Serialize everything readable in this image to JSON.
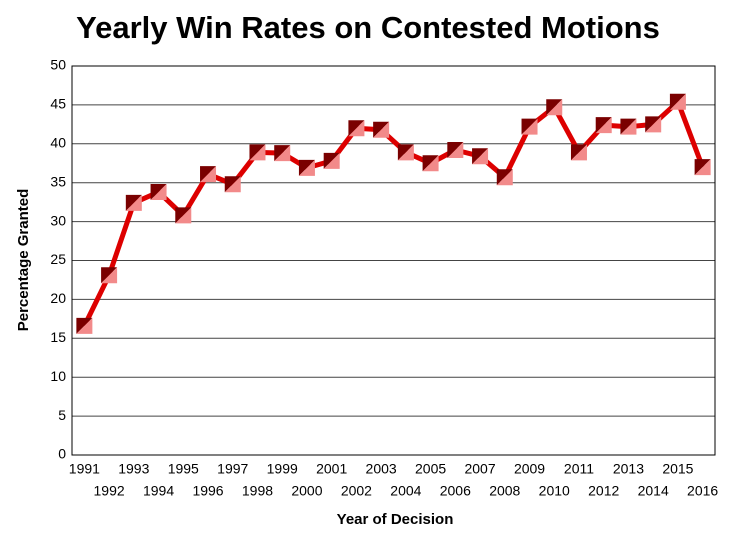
{
  "chart_data": {
    "type": "line",
    "title": "Yearly Win Rates on Contested Motions",
    "x_label": "Year of Decision",
    "y_label": "Percentage Granted",
    "categories": [
      "1991",
      "1992",
      "1993",
      "1994",
      "1995",
      "1996",
      "1997",
      "1998",
      "1999",
      "2000",
      "2001",
      "2002",
      "2003",
      "2004",
      "2005",
      "2006",
      "2007",
      "2008",
      "2009",
      "2010",
      "2011",
      "2012",
      "2013",
      "2014",
      "2015",
      "2016"
    ],
    "series": [
      {
        "name": "Percentage Granted",
        "color": "#dd0000",
        "values": [
          16.6,
          23.1,
          32.4,
          33.8,
          30.8,
          36.1,
          34.8,
          38.9,
          38.8,
          36.9,
          37.8,
          42.0,
          41.8,
          38.9,
          37.5,
          39.2,
          38.4,
          35.7,
          42.2,
          44.7,
          38.9,
          42.4,
          42.2,
          42.5,
          45.4,
          37.0
        ]
      }
    ],
    "ylim": [
      0,
      50
    ],
    "yticks": [
      0,
      5,
      10,
      15,
      20,
      25,
      30,
      35,
      40,
      45,
      50
    ],
    "grid": true
  }
}
